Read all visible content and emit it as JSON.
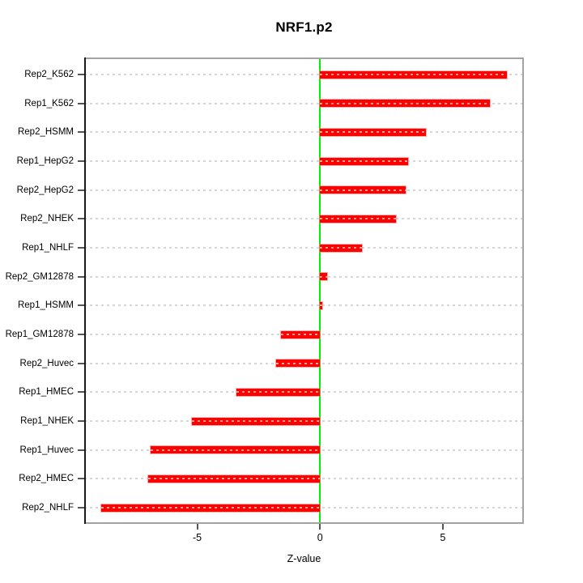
{
  "chart_data": {
    "type": "bar",
    "orientation": "horizontal",
    "title": "NRF1.p2",
    "xlabel": "Z-value",
    "categories": [
      "Rep2_K562",
      "Rep1_K562",
      "Rep2_HSMM",
      "Rep1_HepG2",
      "Rep2_HepG2",
      "Rep2_NHEK",
      "Rep1_NHLF",
      "Rep2_GM12878",
      "Rep1_HSMM",
      "Rep1_GM12878",
      "Rep2_Huvec",
      "Rep1_HMEC",
      "Rep1_NHEK",
      "Rep1_Huvec",
      "Rep2_HMEC",
      "Rep2_NHLF"
    ],
    "values": [
      7.6,
      6.9,
      4.3,
      3.6,
      3.5,
      3.1,
      1.7,
      0.3,
      0.1,
      -1.6,
      -1.8,
      -3.4,
      -5.2,
      -6.9,
      -7.0,
      -8.9
    ],
    "xticks": [
      -5,
      0,
      5
    ],
    "xtick_labels": [
      "-5",
      "0",
      "5"
    ],
    "xlim": [
      -9.6,
      8.3
    ],
    "grid": "dashed-horizontal-per-category",
    "legend": "none",
    "colors": {
      "bar": "#ff0000",
      "zero_line": "#00f000",
      "grid": "#d6d6d6",
      "box": "#a3a3a3",
      "left_axis": "#1a1a1a",
      "tick": "#555555",
      "text": "#000000"
    }
  }
}
